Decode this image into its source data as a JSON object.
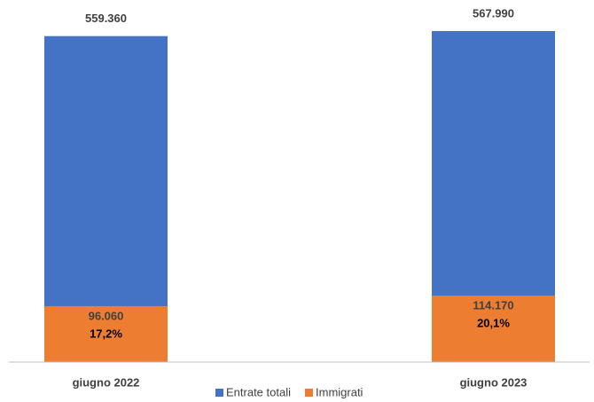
{
  "chart_data": {
    "type": "bar",
    "categories": [
      "giugno 2022",
      "giugno 2023"
    ],
    "series": [
      {
        "name": "Entrate totali",
        "color": "#4472c4",
        "values": [
          559360,
          567990
        ],
        "value_labels": [
          "559.360",
          "567.990"
        ]
      },
      {
        "name": "Immigrati",
        "color": "#ed7d31",
        "values": [
          96060,
          114170
        ],
        "value_labels": [
          "96.060",
          "114.170"
        ],
        "percent_values": [
          17.2,
          20.1
        ],
        "percent_labels": [
          "17,2%",
          "20,1%"
        ]
      }
    ],
    "ylim": [
      0,
      600000
    ],
    "legend": "bottom"
  }
}
